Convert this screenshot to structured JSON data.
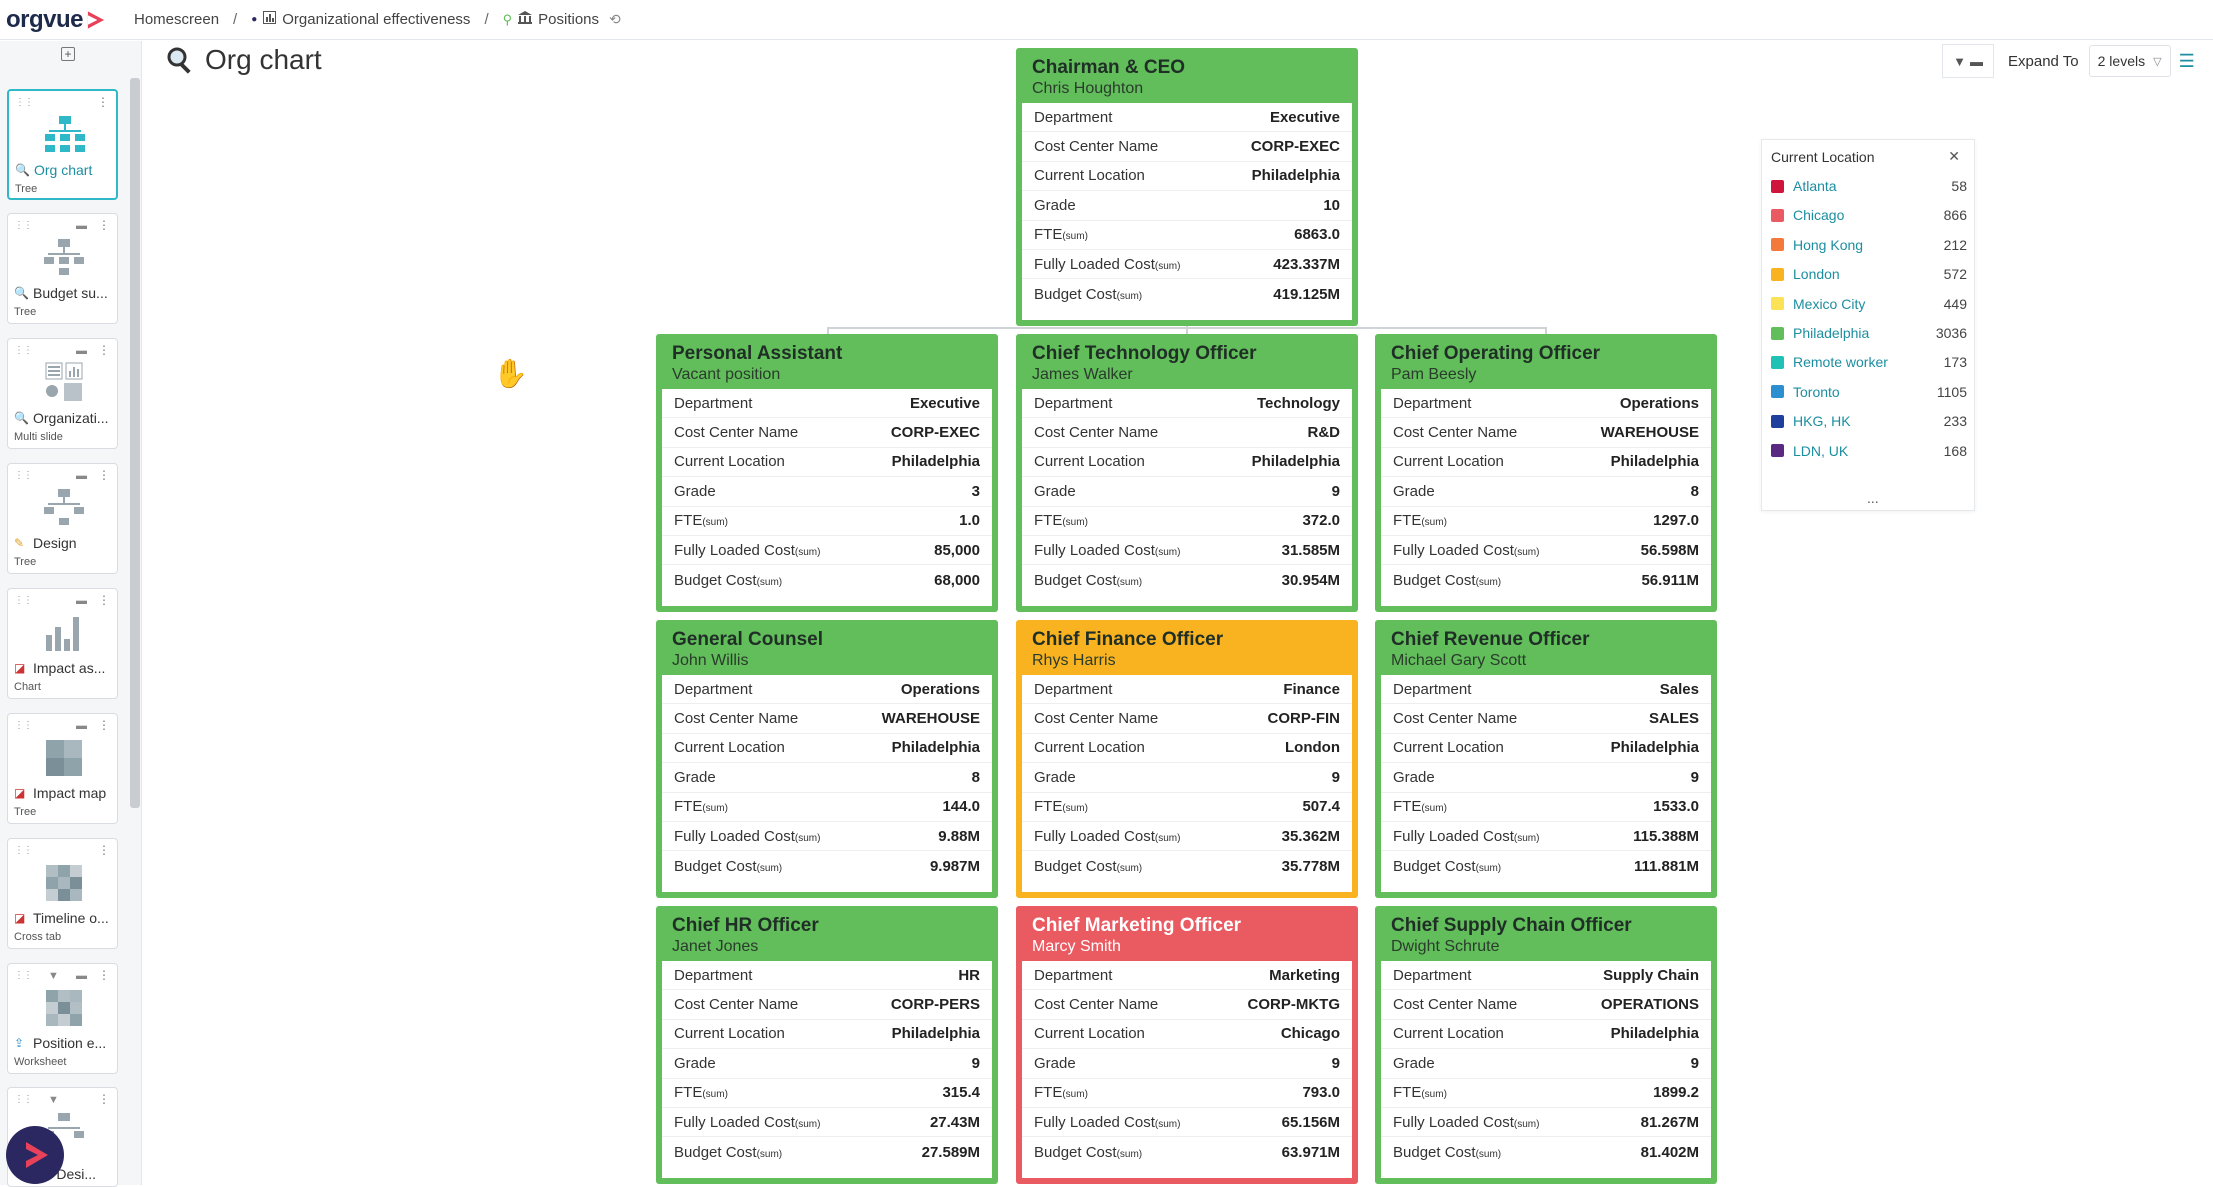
{
  "app": {
    "name": "orgvue"
  },
  "breadcrumb": {
    "home": "Homescreen",
    "dataset": "Organizational effectiveness",
    "view": "Positions"
  },
  "sidebar": {
    "items": [
      {
        "label": "Org chart",
        "type": "Tree",
        "icon": "search-icon"
      },
      {
        "label": "Budget su...",
        "type": "Tree",
        "icon": "search-icon"
      },
      {
        "label": "Organizati...",
        "type": "Multi slide",
        "icon": "search-icon"
      },
      {
        "label": "Design",
        "type": "Tree",
        "icon": "pencil-icon"
      },
      {
        "label": "Impact as...",
        "type": "Chart",
        "icon": "impact-icon"
      },
      {
        "label": "Impact map",
        "type": "Tree",
        "icon": "impact-icon"
      },
      {
        "label": "Timeline o...",
        "type": "Cross tab",
        "icon": "impact-icon"
      },
      {
        "label": "Position e...",
        "type": "Worksheet",
        "icon": "export-icon"
      },
      {
        "label": "...d Desi...",
        "type": "",
        "icon": "search-icon"
      }
    ]
  },
  "page": {
    "title": "Org chart"
  },
  "toolbar": {
    "expand_label": "Expand To",
    "expand_value": "2 levels"
  },
  "row_labels": {
    "department": "Department",
    "cost_center": "Cost Center Name",
    "location": "Current Location",
    "grade": "Grade",
    "fte": "FTE",
    "flc": "Fully Loaded Cost",
    "budget": "Budget Cost",
    "sum": "(sum)"
  },
  "nodes": [
    {
      "title": "Chairman & CEO",
      "name": "Chris Houghton",
      "color": "#62bd5b",
      "department": "Executive",
      "cost_center": "CORP-EXEC",
      "location": "Philadelphia",
      "grade": "10",
      "fte": "6863.0",
      "flc": "423.337M",
      "budget": "419.125M"
    },
    {
      "title": "Personal Assistant",
      "name": "Vacant position",
      "color": "#62bd5b",
      "department": "Executive",
      "cost_center": "CORP-EXEC",
      "location": "Philadelphia",
      "grade": "3",
      "fte": "1.0",
      "flc": "85,000",
      "budget": "68,000"
    },
    {
      "title": "Chief Technology Officer",
      "name": "James Walker",
      "color": "#62bd5b",
      "department": "Technology",
      "cost_center": "R&D",
      "location": "Philadelphia",
      "grade": "9",
      "fte": "372.0",
      "flc": "31.585M",
      "budget": "30.954M"
    },
    {
      "title": "Chief Operating Officer",
      "name": "Pam Beesly",
      "color": "#62bd5b",
      "department": "Operations",
      "cost_center": "WAREHOUSE",
      "location": "Philadelphia",
      "grade": "8",
      "fte": "1297.0",
      "flc": "56.598M",
      "budget": "56.911M"
    },
    {
      "title": "General Counsel",
      "name": "John Willis",
      "color": "#62bd5b",
      "department": "Operations",
      "cost_center": "WAREHOUSE",
      "location": "Philadelphia",
      "grade": "8",
      "fte": "144.0",
      "flc": "9.88M",
      "budget": "9.987M"
    },
    {
      "title": "Chief Finance Officer",
      "name": "Rhys Harris",
      "color": "#f9b321",
      "department": "Finance",
      "cost_center": "CORP-FIN",
      "location": "London",
      "grade": "9",
      "fte": "507.4",
      "flc": "35.362M",
      "budget": "35.778M"
    },
    {
      "title": "Chief Revenue Officer",
      "name": "Michael Gary Scott",
      "color": "#62bd5b",
      "department": "Sales",
      "cost_center": "SALES",
      "location": "Philadelphia",
      "grade": "9",
      "fte": "1533.0",
      "flc": "115.388M",
      "budget": "111.881M"
    },
    {
      "title": "Chief HR Officer",
      "name": "Janet Jones",
      "color": "#62bd5b",
      "department": "HR",
      "cost_center": "CORP-PERS",
      "location": "Philadelphia",
      "grade": "9",
      "fte": "315.4",
      "flc": "27.43M",
      "budget": "27.589M"
    },
    {
      "title": "Chief Marketing Officer",
      "name": "Marcy Smith",
      "color": "#e95a61",
      "department": "Marketing",
      "cost_center": "CORP-MKTG",
      "location": "Chicago",
      "grade": "9",
      "fte": "793.0",
      "flc": "65.156M",
      "budget": "63.971M"
    },
    {
      "title": "Chief Supply Chain Officer",
      "name": "Dwight Schrute",
      "color": "#62bd5b",
      "department": "Supply Chain",
      "cost_center": "OPERATIONS",
      "location": "Philadelphia",
      "grade": "9",
      "fte": "1899.2",
      "flc": "81.267M",
      "budget": "81.402M"
    }
  ],
  "legend": {
    "title": "Current Location",
    "more": "...",
    "items": [
      {
        "label": "Atlanta",
        "count": "58",
        "color": "#d0153c"
      },
      {
        "label": "Chicago",
        "count": "866",
        "color": "#ea5a63"
      },
      {
        "label": "Hong Kong",
        "count": "212",
        "color": "#f47a3c"
      },
      {
        "label": "London",
        "count": "572",
        "color": "#f9b321"
      },
      {
        "label": "Mexico City",
        "count": "449",
        "color": "#fbe256"
      },
      {
        "label": "Philadelphia",
        "count": "3036",
        "color": "#62bd5b"
      },
      {
        "label": "Remote worker",
        "count": "173",
        "color": "#1fc2b4"
      },
      {
        "label": "Toronto",
        "count": "1105",
        "color": "#2b8fd0"
      },
      {
        "label": "HKG, HK",
        "count": "233",
        "color": "#1e3f9b"
      },
      {
        "label": "LDN, UK",
        "count": "168",
        "color": "#5a2a83"
      }
    ]
  }
}
